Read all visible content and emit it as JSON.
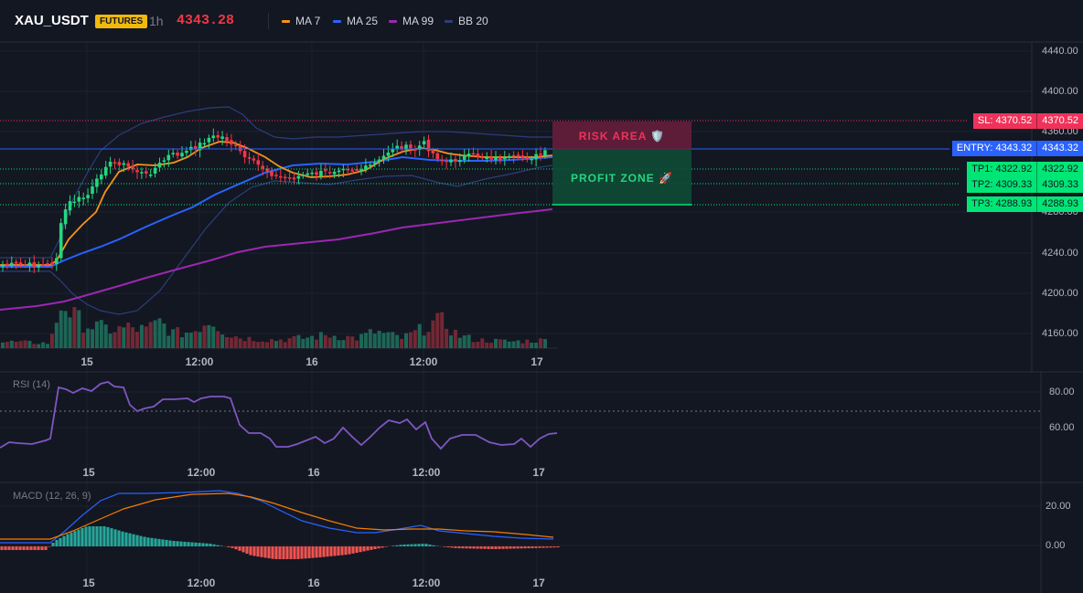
{
  "header": {
    "symbol": "XAU_USDT",
    "badge": "FUTURES",
    "timeframe": "1h",
    "last_price": "4343.28",
    "legend": [
      {
        "label": "MA 7",
        "color": "#f7931a"
      },
      {
        "label": "MA 25",
        "color": "#2962ff"
      },
      {
        "label": "MA 99",
        "color": "#9c27b0"
      },
      {
        "label": "BB 20",
        "color": "#2c3e7a"
      }
    ]
  },
  "price_axis": {
    "ticks": [
      "4440.00",
      "4400.00",
      "4360.00",
      "4240.00",
      "4200.00",
      "4160.00"
    ],
    "hidden_tick": "4280.00"
  },
  "time_axis": {
    "labels": [
      "15",
      "12:00",
      "16",
      "12:00",
      "17"
    ]
  },
  "levels": {
    "sl": {
      "label": "SL: 4370.52",
      "value": "4370.52",
      "color": "#f0325a"
    },
    "entry": {
      "label": "ENTRY: 4343.32",
      "value": "4343.32",
      "color": "#2962ff"
    },
    "tp1": {
      "label": "TP1: 4322.92",
      "value": "4322.92",
      "color": "#00e676"
    },
    "tp2": {
      "label": "TP2: 4309.33",
      "value": "4309.33",
      "color": "#00e676"
    },
    "tp3": {
      "label": "TP3: 4288.93",
      "value": "4288.93",
      "color": "#00e676"
    }
  },
  "zones": {
    "risk_label": "RISK AREA 🛡️",
    "profit_label": "PROFIT ZONE 🚀"
  },
  "rsi": {
    "title": "RSI (14)",
    "ticks": [
      "80.00",
      "60.00"
    ],
    "color": "#7e57c2"
  },
  "macd": {
    "title": "MACD (12, 26, 9)",
    "ticks": [
      "20.00",
      "0.00"
    ],
    "macd_color": "#2962ff",
    "signal_color": "#f57c00"
  },
  "colors": {
    "up": "#26d67f",
    "down": "#f23645",
    "background": "#131722"
  }
}
